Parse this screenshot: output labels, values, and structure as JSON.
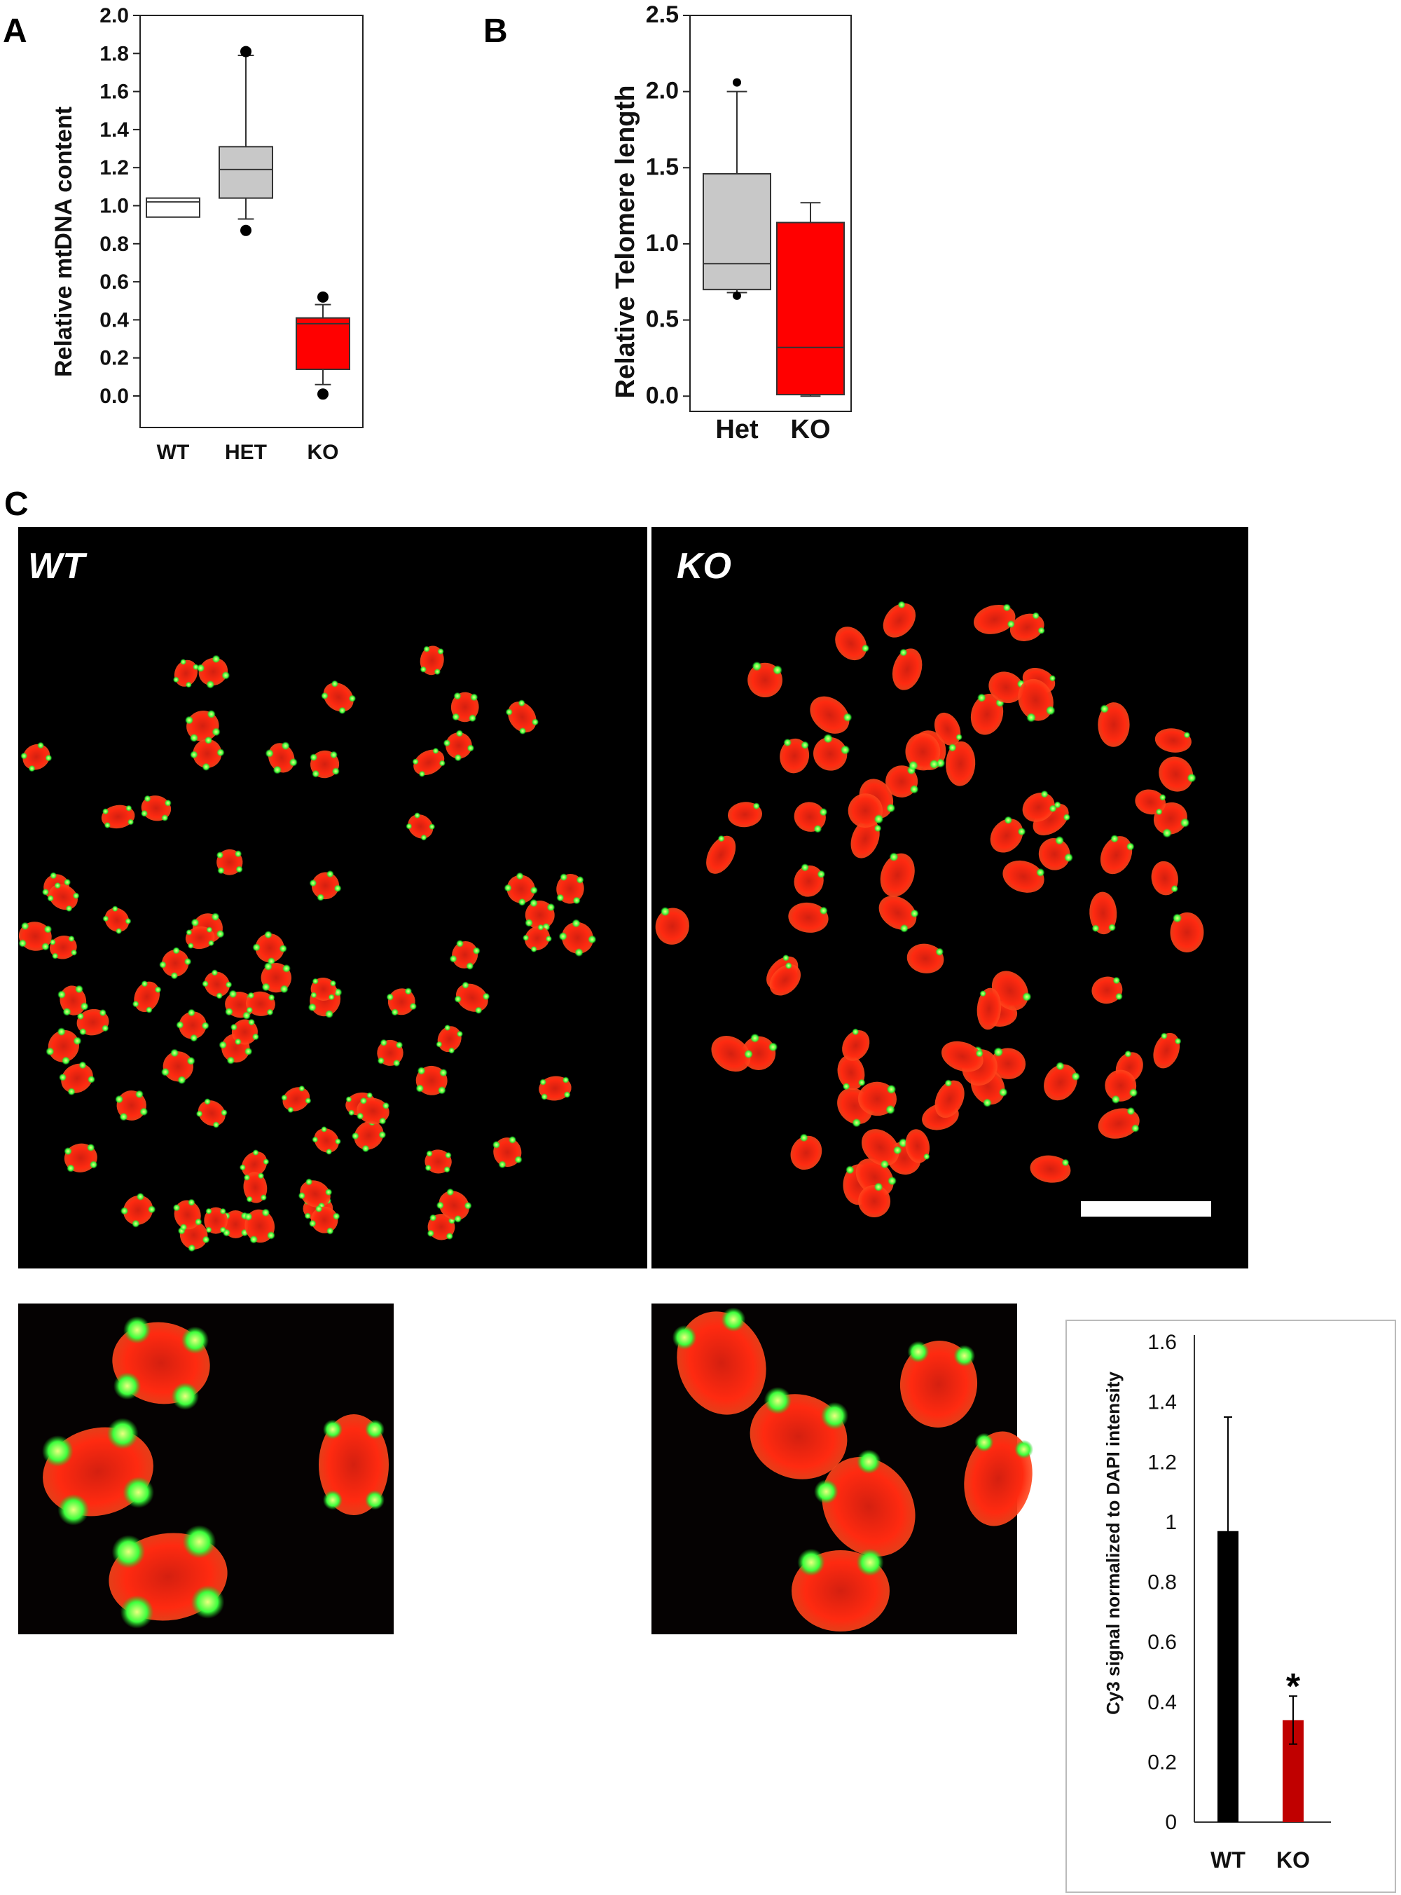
{
  "panel_labels": {
    "a": "A",
    "b": "B",
    "c": "C"
  },
  "colors": {
    "wt": "#ffffff",
    "het": "#c8c8c8",
    "ko": "#ff0000",
    "bar_wt": "#000000",
    "bar_ko": "#c00000",
    "telomere": "#3cff3c",
    "chromosome": "#ff2010"
  },
  "micrographs": {
    "wt_label": "WT",
    "ko_label": "KO"
  },
  "chart_data": [
    {
      "panel": "A",
      "type": "box",
      "ylabel": "Relative mtDNA content",
      "ylim": [
        0,
        2.0
      ],
      "yticks": [
        "0.0",
        "0.2",
        "0.4",
        "0.6",
        "0.8",
        "1.0",
        "1.2",
        "1.4",
        "1.6",
        "1.8",
        "2.0"
      ],
      "grid": false,
      "categories": [
        "WT",
        "HET",
        "KO"
      ],
      "boxes": [
        {
          "q1": 0.94,
          "median": 1.02,
          "q3": 1.04,
          "whisker_low": null,
          "whisker_high": null,
          "outliers": [],
          "color": "#ffffff"
        },
        {
          "q1": 1.04,
          "median": 1.19,
          "q3": 1.31,
          "whisker_low": 0.93,
          "whisker_high": 1.79,
          "outliers": [
            0.87,
            1.81
          ],
          "color": "#c8c8c8"
        },
        {
          "q1": 0.14,
          "median": 0.38,
          "q3": 0.41,
          "whisker_low": 0.06,
          "whisker_high": 0.48,
          "outliers": [
            0.01,
            0.52
          ],
          "color": "#ff0000"
        }
      ]
    },
    {
      "panel": "B",
      "type": "box",
      "ylabel": "Relative Telomere length",
      "ylim": [
        -0.1,
        2.5
      ],
      "yticks": [
        "0.0",
        "0.5",
        "1.0",
        "1.5",
        "2.0",
        "2.5"
      ],
      "grid": false,
      "categories": [
        "Het",
        "KO"
      ],
      "boxes": [
        {
          "q1": 0.7,
          "median": 0.87,
          "q3": 1.46,
          "whisker_low": 0.68,
          "whisker_high": 2.0,
          "outliers": [
            2.06,
            0.66
          ],
          "color": "#c8c8c8"
        },
        {
          "q1": 0.01,
          "median": 0.32,
          "q3": 1.14,
          "whisker_low": 0.0,
          "whisker_high": 1.27,
          "outliers": [],
          "color": "#ff0000"
        }
      ]
    },
    {
      "panel": "C-quant",
      "type": "bar",
      "ylabel": "Cy3 signal normalized to DAPI intensity",
      "ylim": [
        0,
        1.6
      ],
      "yticks": [
        "0",
        "0.2",
        "0.4",
        "0.6",
        "0.8",
        "1",
        "1.2",
        "1.4",
        "1.6"
      ],
      "grid": false,
      "categories": [
        "WT",
        "KO"
      ],
      "values": [
        0.97,
        0.34
      ],
      "errors": [
        0.38,
        0.08
      ],
      "colors": [
        "#000000",
        "#c00000"
      ],
      "annotations": [
        {
          "category": "KO",
          "text": "*"
        }
      ]
    }
  ]
}
